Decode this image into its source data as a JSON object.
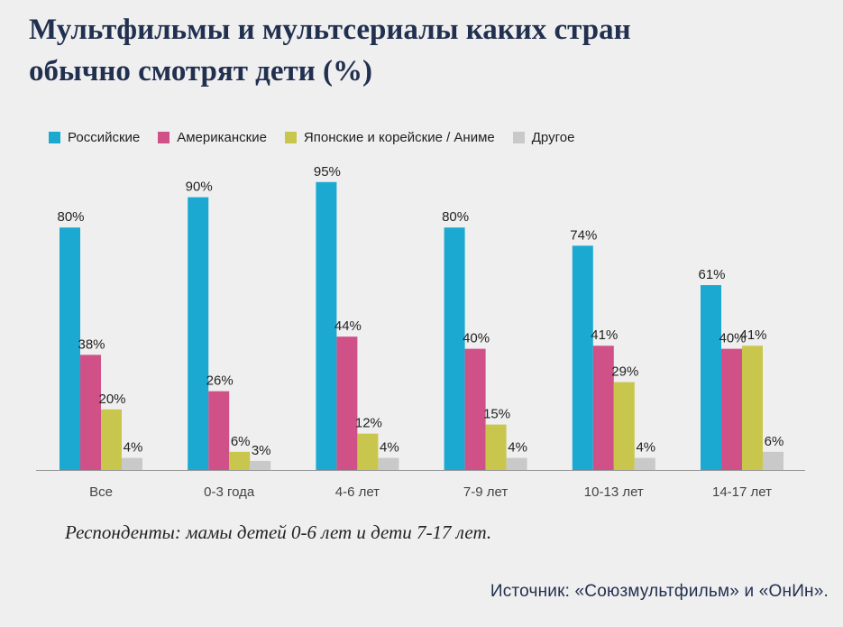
{
  "title_line1": "Мультфильмы и мультсериалы каких стран",
  "title_line2": "обычно смотрят дети (%)",
  "note": "Респонденты: мамы детей 0-6 лет и дети 7-17 лет.",
  "source": "Источник: «Союзмультфильм» и «ОнИн».",
  "chart_data": {
    "type": "bar",
    "title": "Мультфильмы и мультсериалы каких стран обычно смотрят дети (%)",
    "xlabel": "",
    "ylabel": "",
    "ylim": [
      0,
      100
    ],
    "grid": false,
    "legend_position": "top-left",
    "categories": [
      "Все",
      "0-3 года",
      "4-6 лет",
      "7-9 лет",
      "10-13 лет",
      "14-17 лет"
    ],
    "series": [
      {
        "name": "Российские",
        "color": "#1ba9d1",
        "values": [
          80,
          90,
          95,
          80,
          74,
          61
        ]
      },
      {
        "name": "Американские",
        "color": "#d05188",
        "values": [
          38,
          26,
          44,
          40,
          41,
          40
        ]
      },
      {
        "name": "Японские и корейские / Аниме",
        "color": "#c9c64e",
        "values": [
          20,
          6,
          12,
          15,
          29,
          41
        ]
      },
      {
        "name": "Другое",
        "color": "#c9c9c9",
        "values": [
          4,
          3,
          4,
          4,
          4,
          6
        ]
      }
    ]
  }
}
